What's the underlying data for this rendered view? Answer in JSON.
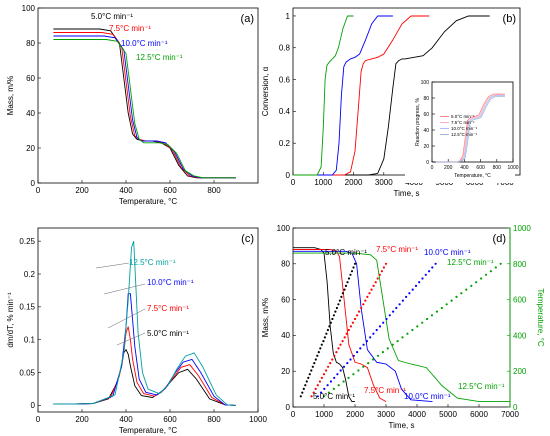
{
  "chart_data": [
    {
      "type": "line",
      "panel_label": "(a)",
      "xlabel": "Temperature, °C",
      "ylabel": "Mass, m/%",
      "xlim": [
        0,
        1000
      ],
      "ylim": [
        0,
        100
      ],
      "xticks": [
        0,
        200,
        400,
        600,
        800
      ],
      "yticks": [
        0,
        20,
        40,
        60,
        80,
        100
      ],
      "legend_position": "inline labels",
      "series": [
        {
          "name": "5.0°C min⁻¹",
          "color": "#000000",
          "x": [
            70,
            150,
            200,
            280,
            330,
            370,
            390,
            410,
            430,
            450,
            480,
            520,
            560,
            600,
            640,
            680,
            720,
            780,
            860,
            900
          ],
          "values": [
            88,
            88,
            88,
            88,
            87,
            80,
            60,
            40,
            28,
            25,
            24,
            24,
            23,
            20,
            10,
            4,
            3,
            3,
            3,
            3
          ]
        },
        {
          "name": "7.5°C min⁻¹",
          "color": "#ff0000",
          "x": [
            70,
            150,
            200,
            290,
            340,
            380,
            400,
            420,
            440,
            460,
            490,
            530,
            570,
            610,
            650,
            690,
            730,
            790,
            860,
            900
          ],
          "values": [
            86,
            86,
            86,
            86,
            85,
            78,
            58,
            38,
            27,
            25,
            24,
            24,
            23,
            19,
            9,
            4,
            3,
            3,
            3,
            3
          ]
        },
        {
          "name": "10.0°C min⁻¹",
          "color": "#0000ff",
          "x": [
            70,
            150,
            200,
            300,
            350,
            390,
            410,
            430,
            450,
            470,
            500,
            540,
            580,
            620,
            660,
            700,
            740,
            800,
            860,
            900
          ],
          "values": [
            84,
            84,
            84,
            84,
            83,
            76,
            56,
            36,
            26,
            24,
            24,
            24,
            23,
            18,
            8,
            4,
            3,
            3,
            3,
            3
          ]
        },
        {
          "name": "12.5°C min⁻¹",
          "color": "#00a000",
          "x": [
            70,
            150,
            200,
            310,
            360,
            400,
            420,
            440,
            460,
            480,
            510,
            550,
            590,
            630,
            670,
            710,
            750,
            810,
            860,
            900
          ],
          "values": [
            82,
            82,
            82,
            82,
            81,
            74,
            54,
            34,
            25,
            23,
            23,
            23,
            22,
            17,
            7,
            4,
            3,
            3,
            3,
            3
          ]
        }
      ]
    },
    {
      "type": "line",
      "panel_label": "(b)",
      "xlabel": "Time, s",
      "ylabel": "Conversion, α",
      "xlim": [
        0,
        7500
      ],
      "ylim": [
        0,
        1.05
      ],
      "xticks": [
        0,
        1000,
        2000,
        3000,
        4000,
        5000,
        6000,
        7000
      ],
      "yticks": [
        0.0,
        0.2,
        0.4,
        0.6,
        0.8,
        1.0
      ],
      "series": [
        {
          "name": "5.0°C min⁻¹",
          "color": "#000000",
          "x": [
            0,
            2500,
            2800,
            3000,
            3150,
            3300,
            3400,
            3500,
            3600,
            3700,
            4000,
            4300,
            4600,
            5000,
            5400,
            5800,
            6000,
            6500
          ],
          "values": [
            0,
            0,
            0.01,
            0.1,
            0.3,
            0.55,
            0.7,
            0.72,
            0.73,
            0.73,
            0.74,
            0.75,
            0.8,
            0.9,
            0.97,
            1.0,
            1.0,
            1.0
          ]
        },
        {
          "name": "7.5°C min⁻¹",
          "color": "#ff0000",
          "x": [
            0,
            1700,
            1900,
            2050,
            2150,
            2250,
            2320,
            2400,
            2600,
            2800,
            3000,
            3300,
            3600,
            3900,
            4100,
            4500
          ],
          "values": [
            0,
            0,
            0.02,
            0.15,
            0.4,
            0.65,
            0.7,
            0.72,
            0.73,
            0.74,
            0.76,
            0.85,
            0.95,
            1.0,
            1.0,
            1.0
          ]
        },
        {
          "name": "10.0°C min⁻¹",
          "color": "#0000ff",
          "x": [
            0,
            1300,
            1430,
            1520,
            1600,
            1680,
            1750,
            1900,
            2050,
            2200,
            2400,
            2600,
            2800,
            3000,
            3300
          ],
          "values": [
            0,
            0,
            0.03,
            0.2,
            0.5,
            0.68,
            0.71,
            0.73,
            0.74,
            0.76,
            0.85,
            0.95,
            1.0,
            1.0,
            1.0
          ]
        },
        {
          "name": "12.5°C min⁻¹",
          "color": "#00a000",
          "x": [
            0,
            800,
            930,
            1000,
            1060,
            1120,
            1200,
            1300,
            1400,
            1500,
            1650,
            1800,
            1900,
            2000
          ],
          "values": [
            0,
            0,
            0.05,
            0.3,
            0.6,
            0.69,
            0.71,
            0.73,
            0.75,
            0.8,
            0.92,
            1.0,
            1.0,
            1.0
          ]
        }
      ]
    },
    {
      "type": "line",
      "panel_label": "",
      "inset_of": "(b)",
      "xlabel": "Temperature, °C",
      "ylabel": "Reaction progress, %",
      "xlim": [
        0,
        1000
      ],
      "ylim": [
        0,
        100
      ],
      "xticks": [
        0,
        200,
        400,
        600,
        800,
        1000
      ],
      "yticks": [
        0,
        20,
        40,
        60,
        80,
        100
      ],
      "legend": [
        "5.0°C min⁻¹",
        "7.5°C min⁻¹",
        "10.0°C min⁻¹",
        "12.5°C min⁻¹"
      ],
      "legend_position": "bottom-left",
      "series": [
        {
          "name": "5.0°C min⁻¹",
          "color": "#ff6666",
          "x": [
            50,
            300,
            340,
            380,
            410,
            440,
            480,
            530,
            580,
            620,
            660,
            700,
            760,
            850,
            900
          ],
          "values": [
            0,
            0,
            1,
            8,
            30,
            52,
            56,
            57,
            59,
            68,
            76,
            82,
            85,
            85,
            85
          ]
        },
        {
          "name": "7.5°C min⁻¹",
          "color": "#ff99aa",
          "x": [
            50,
            310,
            350,
            390,
            420,
            450,
            490,
            540,
            590,
            630,
            670,
            710,
            770,
            850,
            900
          ],
          "values": [
            0,
            0,
            1,
            7,
            28,
            51,
            55,
            56,
            58,
            67,
            75,
            81,
            84,
            84,
            84
          ]
        },
        {
          "name": "10.0°C min⁻¹",
          "color": "#99aaff",
          "x": [
            50,
            320,
            360,
            400,
            430,
            460,
            500,
            550,
            600,
            640,
            680,
            720,
            780,
            850,
            900
          ],
          "values": [
            0,
            0,
            1,
            6,
            26,
            50,
            54,
            55,
            57,
            66,
            74,
            80,
            83,
            83,
            83
          ]
        },
        {
          "name": "12.5°C min⁻¹",
          "color": "#88aacc",
          "x": [
            50,
            330,
            370,
            410,
            440,
            470,
            510,
            560,
            610,
            650,
            690,
            730,
            790,
            850,
            900
          ],
          "values": [
            0,
            0,
            1,
            5,
            24,
            49,
            53,
            54,
            56,
            65,
            73,
            79,
            82,
            82,
            82
          ]
        }
      ]
    },
    {
      "type": "line",
      "panel_label": "(c)",
      "xlabel": "Temperature, °C",
      "ylabel": "dm/dT, % min⁻¹",
      "xlim": [
        0,
        1000
      ],
      "ylim": [
        -0.01,
        0.27
      ],
      "xticks": [
        0,
        200,
        400,
        600,
        800,
        1000
      ],
      "yticks": [
        0.0,
        0.05,
        0.1,
        0.15,
        0.2,
        0.25
      ],
      "legend_position": "inline labels with pointer lines",
      "series": [
        {
          "name": "5.0°C min⁻¹",
          "color": "#000000",
          "x": [
            70,
            150,
            250,
            320,
            360,
            380,
            390,
            400,
            410,
            420,
            440,
            470,
            520,
            560,
            600,
            640,
            680,
            720,
            780,
            850,
            900
          ],
          "values": [
            0.002,
            0.002,
            0.003,
            0.01,
            0.035,
            0.06,
            0.08,
            0.085,
            0.078,
            0.06,
            0.03,
            0.015,
            0.012,
            0.02,
            0.035,
            0.05,
            0.055,
            0.04,
            0.01,
            0.001,
            0.0
          ]
        },
        {
          "name": "7.5°C min⁻¹",
          "color": "#ff0000",
          "x": [
            70,
            150,
            250,
            330,
            370,
            390,
            400,
            410,
            420,
            430,
            450,
            480,
            530,
            570,
            610,
            650,
            690,
            730,
            790,
            850,
            900
          ],
          "values": [
            0.002,
            0.002,
            0.003,
            0.012,
            0.045,
            0.08,
            0.11,
            0.12,
            0.1,
            0.07,
            0.035,
            0.018,
            0.014,
            0.023,
            0.04,
            0.058,
            0.062,
            0.045,
            0.012,
            0.001,
            0.0
          ]
        },
        {
          "name": "10.0°C min⁻¹",
          "color": "#0000ff",
          "x": [
            70,
            150,
            250,
            340,
            380,
            400,
            410,
            420,
            430,
            440,
            460,
            490,
            540,
            580,
            620,
            660,
            700,
            740,
            800,
            850,
            900
          ],
          "values": [
            0.002,
            0.002,
            0.003,
            0.014,
            0.06,
            0.12,
            0.17,
            0.17,
            0.13,
            0.09,
            0.04,
            0.02,
            0.016,
            0.026,
            0.048,
            0.066,
            0.07,
            0.05,
            0.014,
            0.001,
            0.0
          ]
        },
        {
          "name": "12.5°C min⁻¹",
          "color": "#00a0a0",
          "x": [
            70,
            150,
            250,
            350,
            390,
            410,
            425,
            435,
            445,
            455,
            475,
            500,
            550,
            590,
            630,
            670,
            710,
            750,
            810,
            860,
            900
          ],
          "values": [
            0.002,
            0.002,
            0.003,
            0.016,
            0.08,
            0.16,
            0.24,
            0.25,
            0.18,
            0.11,
            0.05,
            0.025,
            0.018,
            0.03,
            0.055,
            0.075,
            0.08,
            0.058,
            0.016,
            0.001,
            0.0
          ]
        }
      ]
    },
    {
      "type": "line",
      "panel_label": "(d)",
      "xlabel": "Time, s",
      "ylabel": "Mass, m/%",
      "y2label": "Temperature, °C",
      "xlim": [
        0,
        7000
      ],
      "ylim": [
        0,
        100
      ],
      "y2lim": [
        0,
        1000
      ],
      "xticks": [
        0,
        1000,
        2000,
        3000,
        4000,
        5000,
        6000,
        7000
      ],
      "yticks": [
        0,
        20,
        40,
        60,
        80,
        100
      ],
      "y2ticks": [
        0,
        200,
        400,
        600,
        800,
        1000
      ],
      "series": [
        {
          "name": "5.0°C min⁻¹",
          "kind": "mass",
          "color": "#000000",
          "x": [
            0,
            400,
            500,
            700,
            900,
            1000,
            1100,
            1200,
            1300,
            1400,
            1500,
            1600,
            1700,
            1800,
            1900,
            2000
          ],
          "values": [
            89,
            89,
            89,
            89,
            88,
            86,
            70,
            45,
            30,
            25,
            24,
            22,
            15,
            6,
            3,
            3
          ]
        },
        {
          "name": "7.5°C min⁻¹",
          "kind": "mass",
          "color": "#ff0000",
          "x": [
            0,
            600,
            900,
            1200,
            1400,
            1500,
            1650,
            1800,
            2000,
            2200,
            2400,
            2600,
            2800,
            3000
          ],
          "values": [
            88,
            88,
            88,
            88,
            87,
            84,
            60,
            35,
            25,
            24,
            22,
            12,
            5,
            3
          ]
        },
        {
          "name": "10.0°C min⁻¹",
          "kind": "mass",
          "color": "#0000ff",
          "x": [
            0,
            800,
            1200,
            1700,
            1900,
            2050,
            2200,
            2400,
            2700,
            3000,
            3300,
            3500,
            3800,
            4500
          ],
          "values": [
            87,
            87,
            87,
            87,
            86,
            80,
            55,
            32,
            25,
            24,
            20,
            10,
            4,
            3
          ]
        },
        {
          "name": "12.5°C min⁻¹",
          "kind": "mass",
          "color": "#00a000",
          "x": [
            0,
            1000,
            1500,
            2000,
            2500,
            2700,
            2900,
            3100,
            3400,
            3800,
            4300,
            4800,
            5300,
            6000,
            7000
          ],
          "values": [
            86,
            86,
            86,
            86,
            85,
            82,
            60,
            38,
            26,
            24,
            22,
            12,
            5,
            3,
            3
          ]
        },
        {
          "name": "5.0°C min⁻¹",
          "kind": "temperature",
          "color": "#000000",
          "x": [
            250,
            2000
          ],
          "values": [
            60,
            800
          ]
        },
        {
          "name": "7.5°C min⁻¹",
          "kind": "temperature",
          "color": "#ff0000",
          "x": [
            600,
            3000
          ],
          "values": [
            60,
            800
          ]
        },
        {
          "name": "10.0°C min⁻¹",
          "kind": "temperature",
          "color": "#0000ff",
          "x": [
            800,
            4600
          ],
          "values": [
            60,
            800
          ]
        },
        {
          "name": "12.5°C min⁻¹",
          "kind": "temperature",
          "color": "#00a000",
          "x": [
            1000,
            6700
          ],
          "values": [
            60,
            800
          ]
        }
      ]
    }
  ]
}
